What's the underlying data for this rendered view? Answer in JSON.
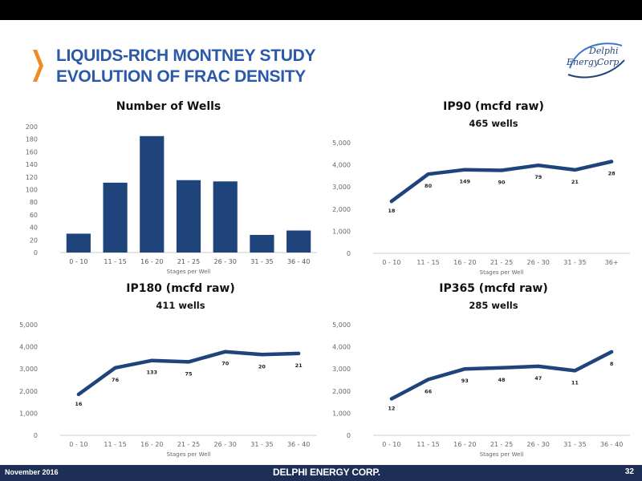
{
  "header": {
    "title_line1": "LIQUIDS-RICH MONTNEY STUDY",
    "title_line2": "EVOLUTION OF FRAC DENSITY",
    "accent_color": "#f08a24",
    "title_color": "#2a59a8",
    "logo_text_1": "Delphi",
    "logo_text_2": "Energy",
    "logo_text_3": "Corp."
  },
  "footer": {
    "date": "November 2016",
    "brand": "DELPHI ENERGY CORP.",
    "page": "32"
  },
  "chart_data": [
    {
      "id": "wells",
      "type": "bar",
      "title": "Number of Wells",
      "subtitle": "",
      "xlabel": "Stages per Well",
      "categories": [
        "0 - 10",
        "11 - 15",
        "16 - 20",
        "21 - 25",
        "26 - 30",
        "31 - 35",
        "36 - 40"
      ],
      "values": [
        30,
        111,
        185,
        115,
        113,
        28,
        35
      ],
      "ylim": [
        0,
        200
      ],
      "yticks": [
        "0",
        "20",
        "40",
        "60",
        "80",
        "100",
        "120",
        "140",
        "160",
        "180",
        "200"
      ],
      "color": "#1f447c",
      "grid": false
    },
    {
      "id": "ip90",
      "type": "line",
      "title": "IP90 (mcfd raw)",
      "subtitle": "465 wells",
      "xlabel": "Stages per Well",
      "categories": [
        "0 - 10",
        "11 - 15",
        "16 - 20",
        "21 - 25",
        "26 - 30",
        "31 - 35",
        "36+"
      ],
      "values": [
        2350,
        3580,
        3780,
        3750,
        3980,
        3770,
        4150
      ],
      "labels": [
        "18",
        "80",
        "149",
        "90",
        "79",
        "21",
        "28"
      ],
      "ylim": [
        0,
        5000
      ],
      "yticks": [
        "0",
        "1,000",
        "2,000",
        "3,000",
        "4,000",
        "5,000"
      ],
      "color": "#1f447c",
      "grid": false
    },
    {
      "id": "ip180",
      "type": "line",
      "title": "IP180 (mcfd raw)",
      "subtitle": "411 wells",
      "xlabel": "Stages per Well",
      "categories": [
        "0 - 10",
        "11 - 15",
        "16 - 20",
        "21 - 25",
        "26 - 30",
        "31 - 35",
        "36 - 40"
      ],
      "values": [
        1850,
        3050,
        3380,
        3320,
        3780,
        3650,
        3700
      ],
      "labels": [
        "16",
        "76",
        "133",
        "75",
        "70",
        "20",
        "21"
      ],
      "ylim": [
        0,
        5000
      ],
      "yticks": [
        "0",
        "1,000",
        "2,000",
        "3,000",
        "4,000",
        "5,000"
      ],
      "color": "#1f447c",
      "grid": false
    },
    {
      "id": "ip365",
      "type": "line",
      "title": "IP365 (mcfd raw)",
      "subtitle": "285 wells",
      "xlabel": "Stages per Well",
      "categories": [
        "0 - 10",
        "11 - 15",
        "16 - 20",
        "21 - 25",
        "26 - 30",
        "31 - 35",
        "36 - 40"
      ],
      "values": [
        1650,
        2520,
        3000,
        3050,
        3120,
        2920,
        3770
      ],
      "labels": [
        "12",
        "66",
        "93",
        "48",
        "47",
        "11",
        "8"
      ],
      "ylim": [
        0,
        5000
      ],
      "yticks": [
        "0",
        "1,000",
        "2,000",
        "3,000",
        "4,000",
        "5,000"
      ],
      "color": "#1f447c",
      "grid": false
    }
  ]
}
